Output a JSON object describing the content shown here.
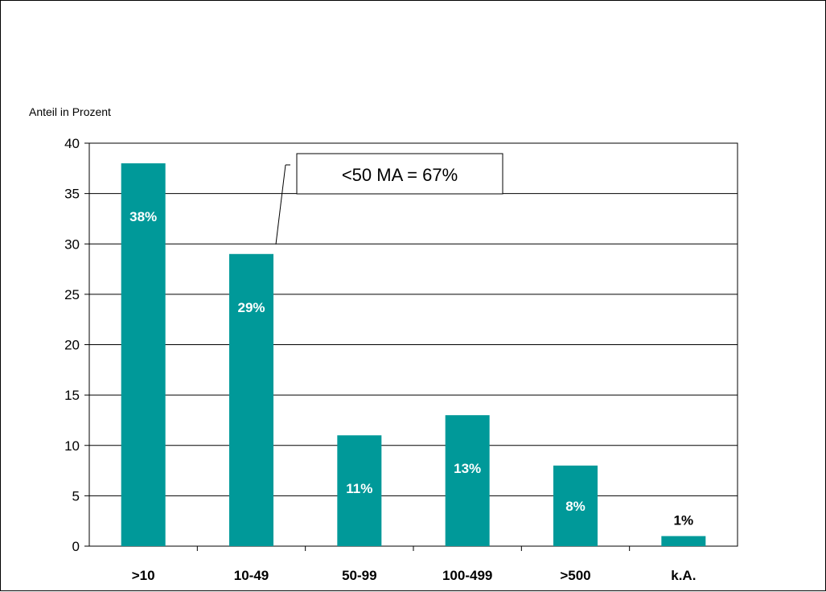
{
  "chart_data": {
    "type": "bar",
    "title": "",
    "xlabel": "",
    "ylabel": "Anteil in Prozent",
    "categories": [
      ">10",
      "10-49",
      "50-99",
      "100-499",
      ">500",
      "k.A."
    ],
    "values": [
      38,
      29,
      11,
      13,
      8,
      1
    ],
    "data_labels": [
      "38%",
      "29%",
      "11%",
      "13%",
      "8%",
      "1%"
    ],
    "ylim": [
      0,
      40
    ],
    "yticks": [
      0,
      5,
      10,
      15,
      20,
      25,
      30,
      35,
      40
    ],
    "grid": true,
    "legend": "none",
    "bar_color": "#009999",
    "annotation": {
      "text": "<50 MA = 67%",
      "points_to": "10-49"
    }
  }
}
